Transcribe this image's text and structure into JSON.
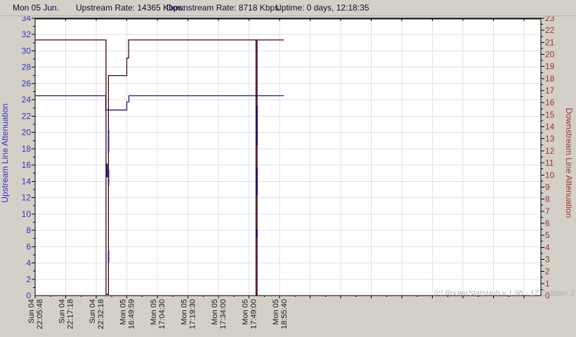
{
  "header": {
    "date": "Mon 05 Jun.",
    "upstream_rate": "Upstream Rate: 14365 Kbps.",
    "downstream_rate": "Downstream Rate: 8718 Kbps.",
    "uptime": "Uptime: 0 days, 12:18:35"
  },
  "watermark": "(c) RouterStatsHub v 1.9b - 17 October 2",
  "colors": {
    "window_background": "#d4d0c8",
    "plot_background": "#ffffff",
    "grid": "#e0e0e0",
    "plot_border": "#000000",
    "header_text": "#0d0d3a",
    "x_label_text": "#1a1a1a",
    "upstream_line": "#181878",
    "upstream_axis_text": "#3434c8",
    "downstream_line": "#46000e",
    "downstream_axis_text": "#9c3636",
    "spike": "#2d1d8f",
    "watermark_text": "#b2b2b2"
  },
  "chart_data": {
    "type": "line",
    "title": "",
    "grid": true,
    "x_tick_labels": [
      {
        "day": "Sun 04",
        "time": "22:05:48"
      },
      {
        "day": "Sun 04",
        "time": "22:17:18"
      },
      {
        "day": "Sun 04",
        "time": "22:32:18"
      },
      {
        "day": "Mon 05",
        "time": "16:49:59"
      },
      {
        "day": "Mon 05",
        "time": "17:04:30"
      },
      {
        "day": "Mon 05",
        "time": "17:19:30"
      },
      {
        "day": "Mon 05",
        "time": "17:34:00"
      },
      {
        "day": "Mon 05",
        "time": "17:49:00"
      },
      {
        "day": "Mon 05",
        "time": "18:55:40"
      }
    ],
    "left_axis": {
      "title": "Upstream Line Attenuation",
      "min": 0,
      "max": 34,
      "tick_step": 2,
      "minor_step": 1,
      "color": "#3434c8"
    },
    "right_axis": {
      "title": "Downstream Line Attenuation",
      "min": 0,
      "max": 23,
      "tick_step": 1,
      "minor_step": 0.5,
      "color": "#9c3636"
    },
    "series": [
      {
        "name": "Upstream Line Attenuation",
        "axis": "left",
        "color": "#181878",
        "points": [
          [
            0,
            24.5
          ],
          [
            2.31,
            24.5
          ],
          [
            2.31,
            22.75
          ],
          [
            3.0,
            22.75
          ],
          [
            3.0,
            23.75
          ],
          [
            3.07,
            23.75
          ],
          [
            3.07,
            24.5
          ],
          [
            8.14,
            24.5
          ]
        ]
      },
      {
        "name": "Downstream Line Attenuation",
        "axis": "right",
        "color": "#46000e",
        "points": [
          [
            0,
            21.2
          ],
          [
            2.32,
            21.2
          ],
          [
            2.32,
            0.1
          ],
          [
            2.4,
            0.1
          ],
          [
            2.4,
            18.25
          ],
          [
            3.0,
            18.25
          ],
          [
            3.0,
            19.7
          ],
          [
            3.06,
            19.7
          ],
          [
            3.06,
            21.2
          ],
          [
            7.23,
            21.2
          ],
          [
            7.23,
            0.05
          ],
          [
            7.265,
            0.05
          ],
          [
            7.265,
            21.2
          ],
          [
            8.14,
            21.2
          ]
        ]
      }
    ],
    "resync_spikes": [
      {
        "axis": "left",
        "x": 2.4,
        "from": 20.3,
        "to": 17.5
      },
      {
        "axis": "left",
        "x": 2.36,
        "from": 16.2,
        "to": 14.5
      },
      {
        "axis": "left",
        "x": 2.4,
        "from": 15.5,
        "to": 13.5
      },
      {
        "axis": "left",
        "x": 2.4,
        "from": 5.5,
        "to": 4.0
      },
      {
        "axis": "left",
        "x": 7.26,
        "from": 23.3,
        "to": 18.4
      },
      {
        "axis": "left",
        "x": 7.26,
        "from": 15.7,
        "to": 12.3
      },
      {
        "axis": "left",
        "x": 7.26,
        "from": 8.1,
        "to": 7.1
      }
    ]
  }
}
